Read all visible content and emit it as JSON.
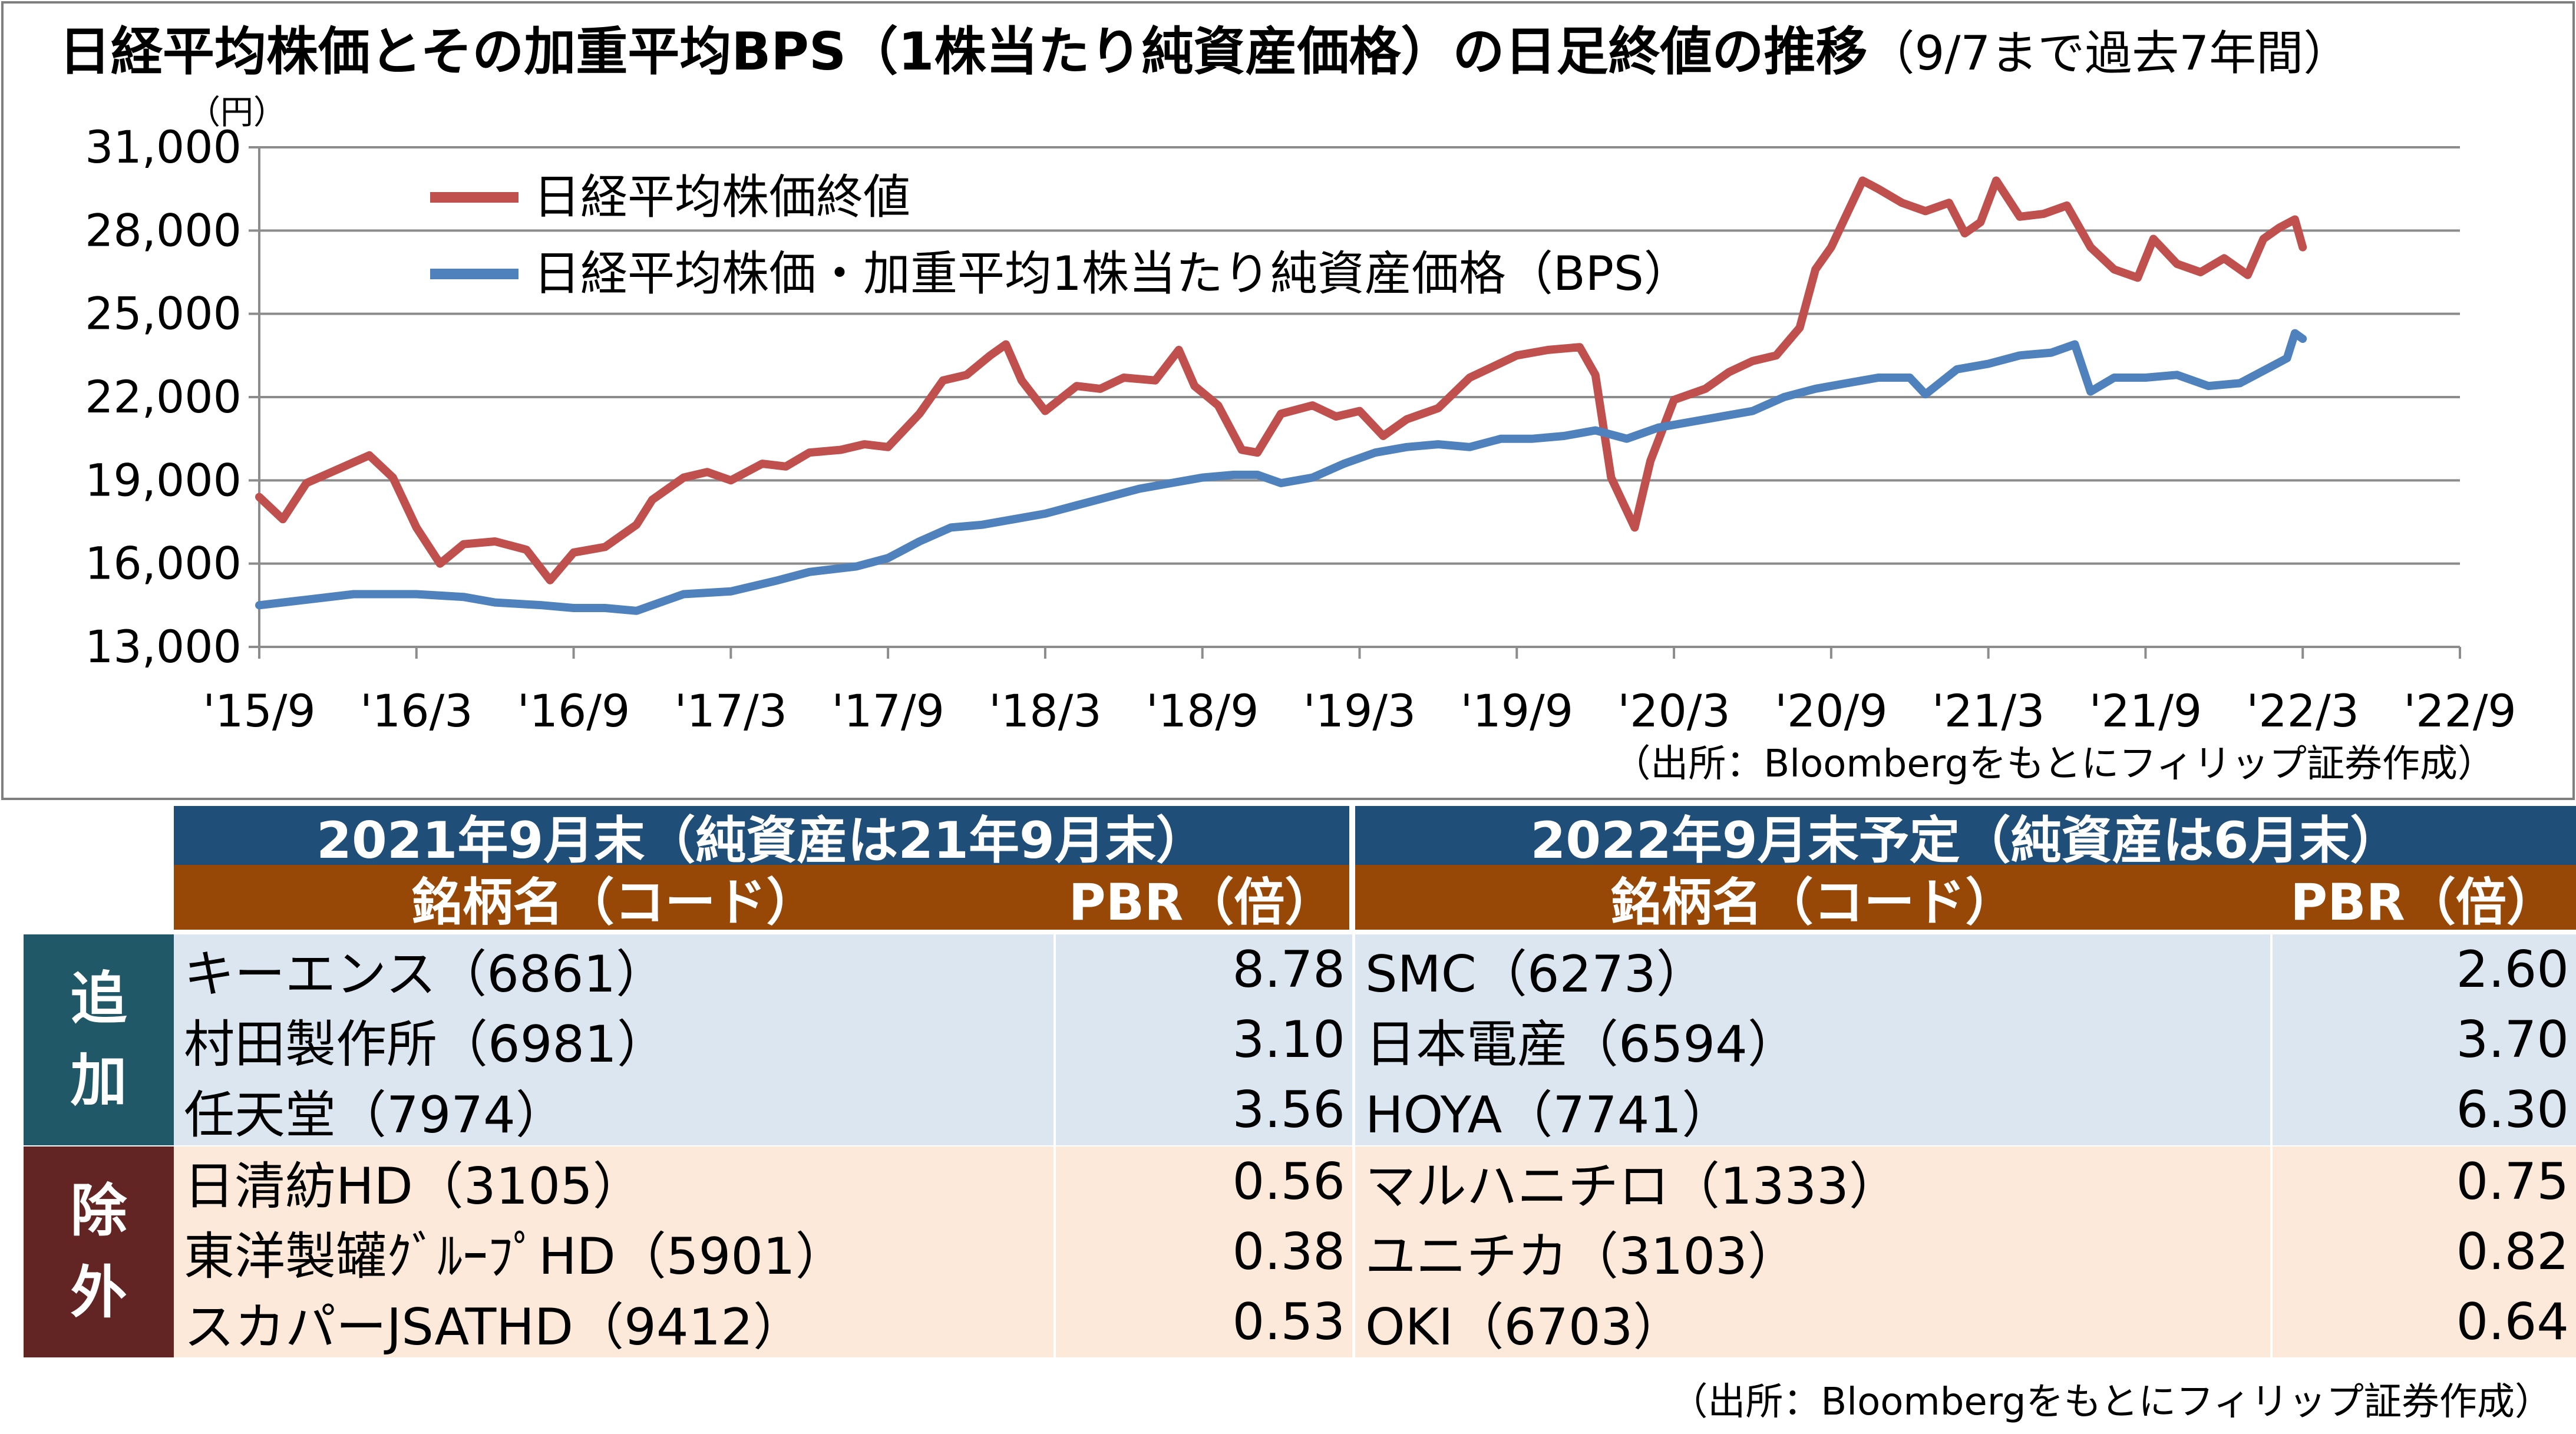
{
  "chart_data": {
    "type": "line",
    "title": "日経平均株価とその加重平均BPS（1株当たり純資産価格）の日足終値の推移",
    "title_note": "（9/7まで過去7年間）",
    "y_unit": "（円）",
    "ylim": [
      13000,
      31000
    ],
    "y_ticks": [
      "31,000",
      "28,000",
      "25,000",
      "22,000",
      "19,000",
      "16,000",
      "13,000"
    ],
    "x_ticks": [
      "'15/9",
      "'16/3",
      "'16/9",
      "'17/3",
      "'17/9",
      "'18/3",
      "'18/9",
      "'19/3",
      "'19/9",
      "'20/3",
      "'20/9",
      "'21/3",
      "'21/9",
      "'22/3",
      "'22/9"
    ],
    "grid": true,
    "legend_position": "top-left",
    "series": [
      {
        "name": "日経平均株価終値",
        "color": "#c0504d",
        "points": [
          [
            0,
            18400
          ],
          [
            0.15,
            17600
          ],
          [
            0.3,
            18900
          ],
          [
            0.5,
            19400
          ],
          [
            0.7,
            19900
          ],
          [
            0.85,
            19100
          ],
          [
            1.0,
            17300
          ],
          [
            1.15,
            16000
          ],
          [
            1.3,
            16700
          ],
          [
            1.5,
            16800
          ],
          [
            1.7,
            16500
          ],
          [
            1.85,
            15400
          ],
          [
            2.0,
            16400
          ],
          [
            2.2,
            16600
          ],
          [
            2.4,
            17400
          ],
          [
            2.5,
            18300
          ],
          [
            2.7,
            19100
          ],
          [
            2.85,
            19300
          ],
          [
            3.0,
            19000
          ],
          [
            3.2,
            19600
          ],
          [
            3.35,
            19500
          ],
          [
            3.5,
            20000
          ],
          [
            3.7,
            20100
          ],
          [
            3.85,
            20300
          ],
          [
            4.0,
            20200
          ],
          [
            4.2,
            21400
          ],
          [
            4.35,
            22600
          ],
          [
            4.5,
            22800
          ],
          [
            4.65,
            23500
          ],
          [
            4.75,
            23900
          ],
          [
            4.85,
            22600
          ],
          [
            5.0,
            21500
          ],
          [
            5.2,
            22400
          ],
          [
            5.35,
            22300
          ],
          [
            5.5,
            22700
          ],
          [
            5.7,
            22600
          ],
          [
            5.85,
            23700
          ],
          [
            5.95,
            22400
          ],
          [
            6.1,
            21700
          ],
          [
            6.25,
            20100
          ],
          [
            6.35,
            20000
          ],
          [
            6.5,
            21400
          ],
          [
            6.7,
            21700
          ],
          [
            6.85,
            21300
          ],
          [
            7.0,
            21500
          ],
          [
            7.15,
            20600
          ],
          [
            7.3,
            21200
          ],
          [
            7.5,
            21600
          ],
          [
            7.7,
            22700
          ],
          [
            7.85,
            23100
          ],
          [
            8.0,
            23500
          ],
          [
            8.2,
            23700
          ],
          [
            8.4,
            23800
          ],
          [
            8.5,
            22800
          ],
          [
            8.6,
            19100
          ],
          [
            8.75,
            17300
          ],
          [
            8.85,
            19700
          ],
          [
            9.0,
            21900
          ],
          [
            9.2,
            22300
          ],
          [
            9.35,
            22900
          ],
          [
            9.5,
            23300
          ],
          [
            9.65,
            23500
          ],
          [
            9.8,
            24500
          ],
          [
            9.9,
            26600
          ],
          [
            10.0,
            27400
          ],
          [
            10.1,
            28600
          ],
          [
            10.2,
            29800
          ],
          [
            10.3,
            29500
          ],
          [
            10.45,
            29000
          ],
          [
            10.6,
            28700
          ],
          [
            10.75,
            29000
          ],
          [
            10.85,
            27900
          ],
          [
            10.95,
            28300
          ],
          [
            11.05,
            29800
          ],
          [
            11.2,
            28500
          ],
          [
            11.35,
            28600
          ],
          [
            11.5,
            28900
          ],
          [
            11.65,
            27400
          ],
          [
            11.8,
            26600
          ],
          [
            11.95,
            26300
          ],
          [
            12.05,
            27700
          ],
          [
            12.2,
            26800
          ],
          [
            12.35,
            26500
          ],
          [
            12.5,
            27000
          ],
          [
            12.65,
            26400
          ],
          [
            12.75,
            27700
          ],
          [
            12.85,
            28100
          ],
          [
            12.95,
            28400
          ],
          [
            13.0,
            27400
          ]
        ]
      },
      {
        "name": "日経平均株価・加重平均1株当たり純資産価格（BPS）",
        "color": "#4f81bd",
        "points": [
          [
            0,
            14500
          ],
          [
            0.3,
            14700
          ],
          [
            0.6,
            14900
          ],
          [
            1.0,
            14900
          ],
          [
            1.3,
            14800
          ],
          [
            1.5,
            14600
          ],
          [
            1.8,
            14500
          ],
          [
            2.0,
            14400
          ],
          [
            2.2,
            14400
          ],
          [
            2.4,
            14300
          ],
          [
            2.5,
            14500
          ],
          [
            2.7,
            14900
          ],
          [
            3.0,
            15000
          ],
          [
            3.3,
            15400
          ],
          [
            3.5,
            15700
          ],
          [
            3.8,
            15900
          ],
          [
            4.0,
            16200
          ],
          [
            4.2,
            16800
          ],
          [
            4.4,
            17300
          ],
          [
            4.6,
            17400
          ],
          [
            4.8,
            17600
          ],
          [
            5.0,
            17800
          ],
          [
            5.2,
            18100
          ],
          [
            5.4,
            18400
          ],
          [
            5.6,
            18700
          ],
          [
            5.8,
            18900
          ],
          [
            6.0,
            19100
          ],
          [
            6.2,
            19200
          ],
          [
            6.35,
            19200
          ],
          [
            6.5,
            18900
          ],
          [
            6.7,
            19100
          ],
          [
            6.9,
            19600
          ],
          [
            7.1,
            20000
          ],
          [
            7.3,
            20200
          ],
          [
            7.5,
            20300
          ],
          [
            7.7,
            20200
          ],
          [
            7.9,
            20500
          ],
          [
            8.1,
            20500
          ],
          [
            8.3,
            20600
          ],
          [
            8.5,
            20800
          ],
          [
            8.7,
            20500
          ],
          [
            8.9,
            20900
          ],
          [
            9.1,
            21100
          ],
          [
            9.3,
            21300
          ],
          [
            9.5,
            21500
          ],
          [
            9.7,
            22000
          ],
          [
            9.9,
            22300
          ],
          [
            10.1,
            22500
          ],
          [
            10.3,
            22700
          ],
          [
            10.5,
            22700
          ],
          [
            10.6,
            22100
          ],
          [
            10.8,
            23000
          ],
          [
            11.0,
            23200
          ],
          [
            11.2,
            23500
          ],
          [
            11.4,
            23600
          ],
          [
            11.55,
            23900
          ],
          [
            11.65,
            22200
          ],
          [
            11.8,
            22700
          ],
          [
            12.0,
            22700
          ],
          [
            12.2,
            22800
          ],
          [
            12.4,
            22400
          ],
          [
            12.6,
            22500
          ],
          [
            12.8,
            23100
          ],
          [
            12.9,
            23400
          ],
          [
            12.95,
            24300
          ],
          [
            13.0,
            24100
          ]
        ]
      }
    ]
  },
  "chart_source": "（出所：Bloombergをもとにフィリップ証券作成）",
  "tables": [
    {
      "header": "2021年9月末（純資産は21年9月末）",
      "col_name": "銘柄名（コード）",
      "col_pbr": "PBR（倍）",
      "added": [
        {
          "name": "キーエンス（6861）",
          "pbr": "8.78"
        },
        {
          "name": "村田製作所（6981）",
          "pbr": "3.10"
        },
        {
          "name": "任天堂（7974）",
          "pbr": "3.56"
        }
      ],
      "removed": [
        {
          "name": "日清紡HD（3105）",
          "pbr": "0.56"
        },
        {
          "name": "東洋製罐ｸﾞﾙｰﾌﾟHD（5901）",
          "pbr": "0.38"
        },
        {
          "name": "スカパーJSATHD（9412）",
          "pbr": "0.53"
        }
      ]
    },
    {
      "header": "2022年9月末予定（純資産は6月末）",
      "col_name": "銘柄名（コード）",
      "col_pbr": "PBR（倍）",
      "added": [
        {
          "name": "SMC（6273）",
          "pbr": "2.60"
        },
        {
          "name": "日本電産（6594）",
          "pbr": "3.70"
        },
        {
          "name": "HOYA（7741）",
          "pbr": "6.30"
        }
      ],
      "removed": [
        {
          "name": "マルハニチロ（1333）",
          "pbr": "0.75"
        },
        {
          "name": "ユニチカ（3103）",
          "pbr": "0.82"
        },
        {
          "name": "OKI（6703）",
          "pbr": "0.64"
        }
      ]
    }
  ],
  "side_labels": {
    "added": [
      "追",
      "加"
    ],
    "removed": [
      "除",
      "外"
    ]
  },
  "table_source": "（出所：Bloombergをもとにフィリップ証券作成）",
  "colors": {
    "header_blue": "#1f4e79",
    "header_brown": "#974806",
    "added_bg": "#dce6f1",
    "removed_bg": "#fde9d9",
    "side_added": "#215868",
    "side_removed": "#632523"
  }
}
